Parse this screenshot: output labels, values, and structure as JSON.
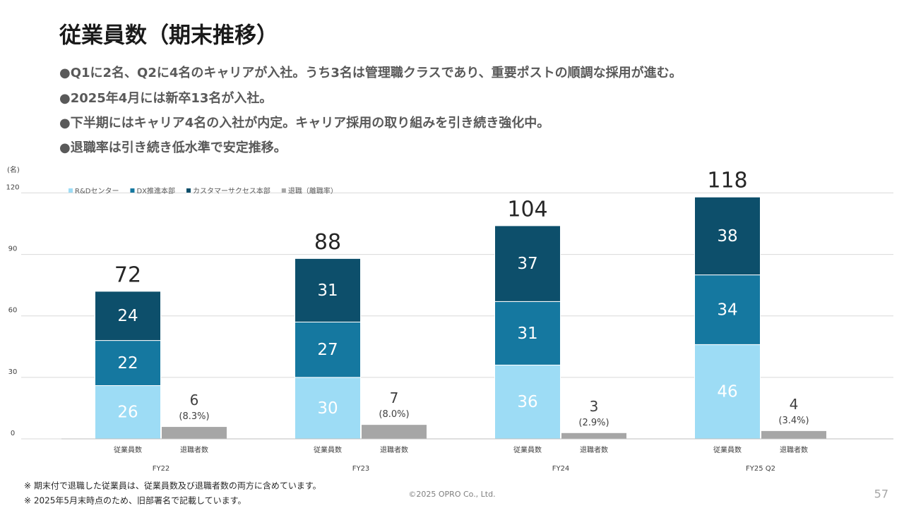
{
  "slide": {
    "title": "従業員数（期末推移）",
    "bullets": [
      "●Q1に2名、Q2に4名のキャリアが入社。うち3名は管理職クラスであり、重要ポストの順調な採用が進む。",
      "●2025年4月には新卒13名が入社。",
      "●下半期にはキャリア4名の入社が内定。キャリア採用の取り組みを引き続き強化中。",
      "●退職率は引き続き低水準で安定推移。"
    ],
    "footnotes": [
      "※ 期末付で退職した従業員は、従業員数及び退職者数の両方に含めています。",
      "※ 2025年5月末時点のため、旧部署名で記載しています。"
    ],
    "copyright": "©2025 OPRO Co., Ltd.",
    "page_number": "57"
  },
  "chart_data": {
    "type": "bar",
    "y_label": "(名)",
    "categories": [
      "FY22",
      "FY23",
      "FY24",
      "FY25 Q2"
    ],
    "sub_categories": [
      "従業員数",
      "退職者数"
    ],
    "series": [
      {
        "name": "R&Dセンター",
        "color": "#9ddcf5",
        "text_color": "#ffffff",
        "stack": 0,
        "values": [
          26,
          30,
          36,
          46
        ]
      },
      {
        "name": "DX推進本部",
        "color": "#1578a0",
        "text_color": "#ffffff",
        "stack": 0,
        "values": [
          22,
          27,
          31,
          34
        ]
      },
      {
        "name": "カスタマーサクセス本部",
        "color": "#0d4f6b",
        "text_color": "#ffffff",
        "stack": 0,
        "values": [
          24,
          31,
          37,
          38
        ]
      },
      {
        "name": "退職（離職率）",
        "color": "#a6a6a6",
        "text_color": "#404040",
        "stack": 1,
        "values": [
          6,
          7,
          3,
          4
        ],
        "rates": [
          8.3,
          8.0,
          2.9,
          3.4
        ],
        "rate_labels": [
          "(8.3%)",
          "(8.0%)",
          "(2.9%)",
          "(3.4%)"
        ]
      }
    ],
    "totals": [
      72,
      88,
      104,
      118
    ],
    "ylim": [
      0,
      126
    ],
    "yticks": [
      0,
      30,
      60,
      90,
      120
    ],
    "grid": true,
    "legend": "top-left"
  }
}
